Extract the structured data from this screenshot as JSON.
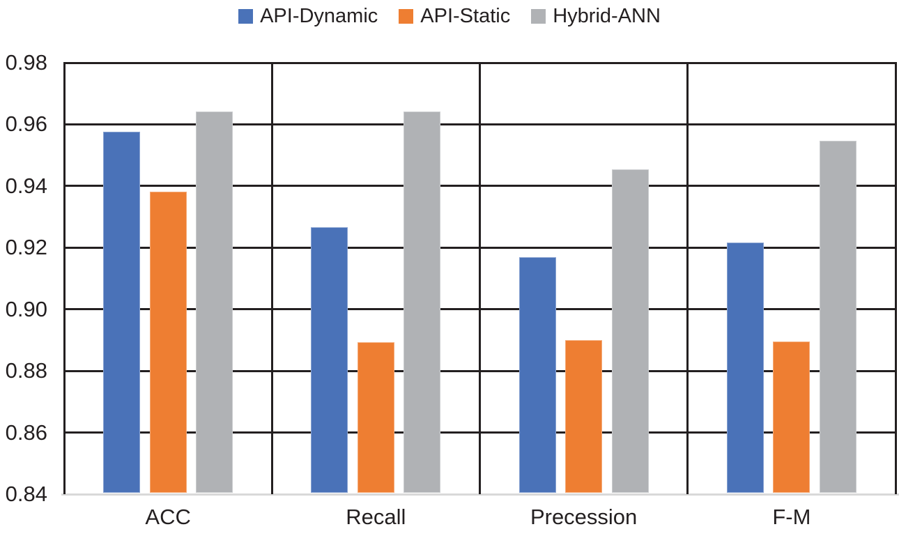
{
  "chart_data": {
    "type": "bar",
    "title": "",
    "xlabel": "",
    "ylabel": "",
    "categories": [
      "ACC",
      "Recall",
      "Precession",
      "F-M"
    ],
    "series": [
      {
        "name": "API-Dynamic",
        "color": "#4A72B8",
        "values": [
          0.9575,
          0.9266,
          0.9168,
          0.9216
        ]
      },
      {
        "name": "API-Static",
        "color": "#EE7E32",
        "values": [
          0.9382,
          0.8893,
          0.89,
          0.8896
        ]
      },
      {
        "name": "Hybrid-ANN",
        "color": "#B0B2B5",
        "values": [
          0.9641,
          0.9641,
          0.9455,
          0.9546
        ]
      }
    ],
    "ylim": [
      0.84,
      0.98
    ],
    "ytick_labels": [
      "0.98",
      "0.96",
      "0.94",
      "0.92",
      "0.90",
      "0.88",
      "0.86",
      "0.84"
    ],
    "grid": "horizontal gridlines with vertical category separators, full frame",
    "legend_position": "top-center"
  },
  "colors": {
    "gridline": "#231F20",
    "baseline": "#D9D9D9",
    "text": "#231F20",
    "background": "#FFFFFF"
  }
}
